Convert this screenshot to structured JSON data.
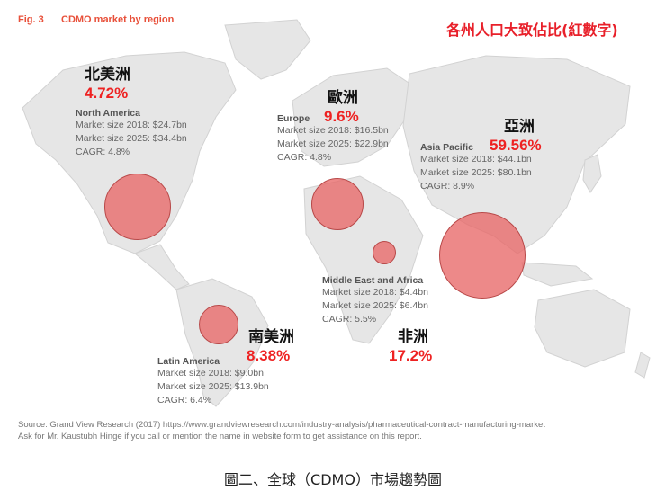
{
  "figure": {
    "number": "Fig. 3",
    "title": "CDMO market by region",
    "note": "各州人口大致佔比(紅數字)"
  },
  "regions": [
    {
      "name": "North America",
      "name_zh": "北美洲",
      "population_share": "4.72%",
      "lines": [
        "Market size 2018: $24.7bn",
        "Market size 2025: $34.4bn",
        "CAGR: 4.8%"
      ]
    },
    {
      "name": "Europe",
      "name_zh": "歐洲",
      "population_share": "9.6%",
      "lines": [
        "Market size 2018: $16.5bn",
        "Market size 2025: $22.9bn",
        "CAGR: 4.8%"
      ]
    },
    {
      "name": "Asia Pacific",
      "name_zh": "亞洲",
      "population_share": "59.56%",
      "lines": [
        "Market size 2018: $44.1bn",
        "Market size 2025: $80.1bn",
        "CAGR: 8.9%"
      ]
    },
    {
      "name": "Middle East and Africa",
      "name_zh": "非洲",
      "population_share": "17.2%",
      "lines": [
        "Market size 2018: $4.4bn",
        "Market size 2025: $6.4bn",
        "CAGR: 5.5%"
      ]
    },
    {
      "name": "Latin America",
      "name_zh": "南美洲",
      "population_share": "8.38%",
      "lines": [
        "Market size 2018: $9.0bn",
        "Market size 2025: $13.9bn",
        "CAGR: 6.4%"
      ]
    }
  ],
  "source": [
    "Source: Grand View Research (2017) https://www.grandviewresearch.com/industry-analysis/pharmaceutical-contract-manufacturing-market",
    "Ask for Mr. Kaustubh Hinge if you call or mention the name in website form to get assistance on this report."
  ],
  "caption": "圖二、全球（CDMO）市場趨勢圖"
}
